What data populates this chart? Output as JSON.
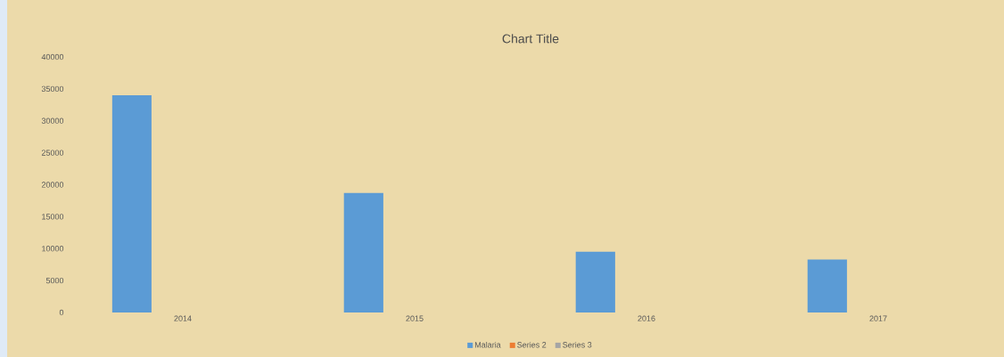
{
  "chart_data": {
    "type": "bar",
    "title": "Chart Title",
    "categories": [
      "2014",
      "2015",
      "2016",
      "2017"
    ],
    "series": [
      {
        "name": "Malaria",
        "color": "#5b9bd5",
        "values": [
          34000,
          18700,
          9500,
          8300
        ]
      },
      {
        "name": "Series 2",
        "color": "#ed7d31",
        "values": [
          null,
          null,
          null,
          null
        ]
      },
      {
        "name": "Series 3",
        "color": "#a5a5a5",
        "values": [
          null,
          null,
          null,
          null
        ]
      }
    ],
    "ylim": [
      0,
      40000
    ],
    "yticks": [
      0,
      5000,
      10000,
      15000,
      20000,
      25000,
      30000,
      35000,
      40000
    ],
    "legend": "bottom"
  }
}
